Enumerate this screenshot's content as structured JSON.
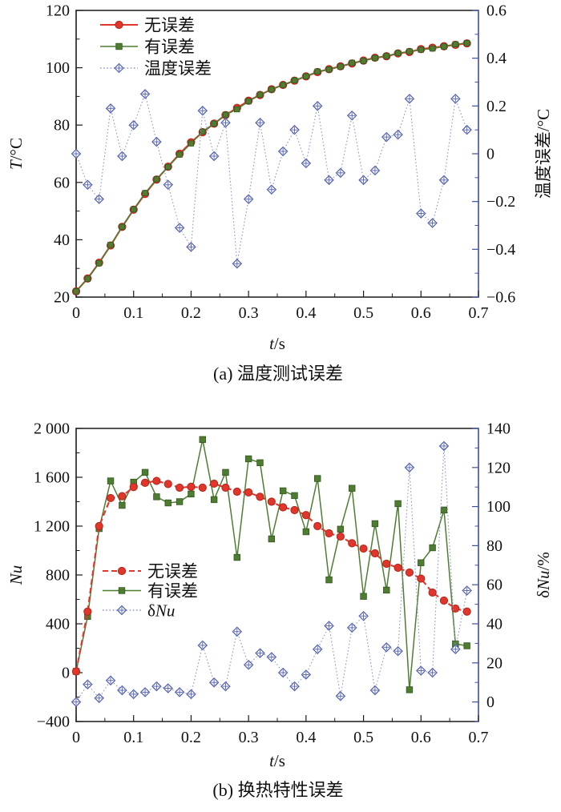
{
  "figure": {
    "background": "#ffffff",
    "caption_a": "(a) 温度测试误差",
    "caption_b": "(b) 换热特性误差"
  },
  "colors": {
    "red": "#e0362b",
    "red_edge": "#b1251a",
    "green": "#4e7d32",
    "green_edge": "#33551f",
    "blue_marker": "#4f5dab",
    "blue_line": "#8d97cb",
    "right_spine": "#3c50a2",
    "black": "#1a1a1a"
  },
  "chart_data": [
    {
      "id": "a",
      "type": "line",
      "title": "(a) 温度测试误差",
      "xlabel": [
        {
          "t": "t",
          "i": true
        },
        {
          "t": "/s",
          "i": false
        }
      ],
      "ylabel_left": [
        {
          "t": "T",
          "i": true
        },
        {
          "t": "/°C",
          "i": false
        }
      ],
      "ylabel_right": [
        {
          "t": "温度误差/°C",
          "i": false
        }
      ],
      "xlim": [
        0,
        0.7
      ],
      "xticks": [
        0,
        0.1,
        0.2,
        0.3,
        0.4,
        0.5,
        0.6,
        0.7
      ],
      "xtick_labels": [
        "0",
        "0.1",
        "0.2",
        "0.3",
        "0.4",
        "0.5",
        "0.6",
        "0.7"
      ],
      "xminor_step": 0.05,
      "ylim_left": [
        20,
        120
      ],
      "yticks_left": [
        20,
        40,
        60,
        80,
        100,
        120
      ],
      "ytick_left_labels": [
        "20",
        "40",
        "60",
        "80",
        "100",
        "120"
      ],
      "yminor_left_step": 10,
      "ylim_right": [
        -0.6,
        0.6
      ],
      "yticks_right": [
        -0.6,
        -0.4,
        -0.2,
        0,
        0.2,
        0.4,
        0.6
      ],
      "ytick_right_labels": [
        "−0.6",
        "−0.4",
        "−0.2",
        "0",
        "0.2",
        "0.4",
        "0.6"
      ],
      "yminor_right_step": 0.1,
      "x": [
        0,
        0.02,
        0.04,
        0.06,
        0.08,
        0.1,
        0.12,
        0.14,
        0.16,
        0.18,
        0.2,
        0.22,
        0.24,
        0.26,
        0.28,
        0.3,
        0.32,
        0.34,
        0.36,
        0.38,
        0.4,
        0.42,
        0.44,
        0.46,
        0.48,
        0.5,
        0.52,
        0.54,
        0.56,
        0.58,
        0.6,
        0.62,
        0.64,
        0.66,
        0.68
      ],
      "legend_pos": "top-left",
      "series": [
        {
          "key": "no-error",
          "name": [
            {
              "t": "无误差",
              "i": false
            }
          ],
          "axis": "left",
          "color": "#e0362b",
          "line": "solid",
          "marker": "circle",
          "z": 1,
          "values": [
            22.0,
            26.5,
            32.0,
            38.0,
            44.5,
            50.5,
            56.0,
            61.0,
            65.5,
            70.0,
            74.0,
            77.5,
            80.5,
            83.5,
            86.0,
            88.5,
            90.5,
            92.5,
            94.0,
            95.5,
            97.0,
            98.5,
            99.5,
            100.5,
            101.5,
            102.5,
            103.5,
            104.0,
            105.0,
            105.5,
            106.5,
            107.0,
            107.5,
            108.0,
            108.5
          ]
        },
        {
          "key": "with-error",
          "name": [
            {
              "t": "有误差",
              "i": false
            }
          ],
          "axis": "left",
          "color": "#4e7d32",
          "line": "solid",
          "marker": "square",
          "z": 2,
          "values": [
            22.0,
            26.4,
            31.8,
            38.2,
            44.5,
            50.6,
            56.3,
            61.1,
            65.4,
            69.7,
            73.6,
            77.7,
            80.5,
            83.6,
            85.5,
            88.3,
            90.6,
            92.4,
            94.0,
            95.6,
            97.0,
            98.7,
            99.4,
            100.4,
            101.7,
            102.4,
            103.4,
            104.1,
            105.1,
            105.7,
            106.3,
            106.7,
            107.4,
            108.2,
            108.6
          ]
        },
        {
          "key": "temp-error",
          "name": [
            {
              "t": "温度误差",
              "i": false
            }
          ],
          "axis": "right",
          "color": "#4f5dab",
          "line": "dotted",
          "marker": "diamond",
          "z": 3,
          "values": [
            0.0,
            -0.13,
            -0.19,
            0.19,
            -0.01,
            0.12,
            0.25,
            0.05,
            -0.13,
            -0.31,
            -0.39,
            0.18,
            -0.01,
            0.13,
            -0.46,
            -0.19,
            0.13,
            -0.15,
            0.01,
            0.1,
            -0.04,
            0.2,
            -0.11,
            -0.08,
            0.16,
            -0.11,
            -0.07,
            0.07,
            0.08,
            0.23,
            -0.25,
            -0.29,
            -0.11,
            0.23,
            0.1
          ]
        }
      ]
    },
    {
      "id": "b",
      "type": "line",
      "title": "(b) 换热特性误差",
      "xlabel": [
        {
          "t": "t",
          "i": true
        },
        {
          "t": "/s",
          "i": false
        }
      ],
      "ylabel_left": [
        {
          "t": "Nu",
          "i": true
        }
      ],
      "ylabel_right": [
        {
          "t": "δ",
          "i": false
        },
        {
          "t": "Nu",
          "i": true
        },
        {
          "t": "/%",
          "i": false
        }
      ],
      "xlim": [
        0,
        0.7
      ],
      "xticks": [
        0,
        0.1,
        0.2,
        0.3,
        0.4,
        0.5,
        0.6,
        0.7
      ],
      "xtick_labels": [
        "0",
        "0.1",
        "0.2",
        "0.3",
        "0.4",
        "0.5",
        "0.6",
        "0.7"
      ],
      "xminor_step": 0.05,
      "ylim_left": [
        -400,
        2000
      ],
      "yticks_left": [
        -400,
        0,
        400,
        800,
        1200,
        1600,
        2000
      ],
      "ytick_left_labels": [
        "−400",
        "0",
        "400",
        "800",
        "1 200",
        "1 600",
        "2 000"
      ],
      "yminor_left_step": 200,
      "ylim_right": [
        -10,
        140
      ],
      "yticks_right": [
        0,
        20,
        40,
        60,
        80,
        100,
        120,
        140
      ],
      "ytick_right_labels": [
        "0",
        "20",
        "40",
        "60",
        "80",
        "100",
        "120",
        "140"
      ],
      "yminor_right_step": 10,
      "x": [
        0,
        0.02,
        0.04,
        0.06,
        0.08,
        0.1,
        0.12,
        0.14,
        0.16,
        0.18,
        0.2,
        0.22,
        0.24,
        0.26,
        0.28,
        0.3,
        0.32,
        0.34,
        0.36,
        0.38,
        0.4,
        0.42,
        0.44,
        0.46,
        0.48,
        0.5,
        0.52,
        0.54,
        0.56,
        0.58,
        0.6,
        0.62,
        0.64,
        0.66,
        0.68
      ],
      "legend_pos": "mid-left",
      "series": [
        {
          "key": "no-error",
          "name": [
            {
              "t": "无误差",
              "i": false
            }
          ],
          "axis": "left",
          "color": "#e0362b",
          "line": "dashed",
          "marker": "circle",
          "z": 2,
          "values": [
            10,
            500,
            1200,
            1430,
            1445,
            1520,
            1555,
            1570,
            1545,
            1515,
            1522,
            1515,
            1548,
            1515,
            1482,
            1476,
            1440,
            1400,
            1354,
            1331,
            1290,
            1200,
            1141,
            1115,
            1060,
            1016,
            977,
            892,
            859,
            820,
            770,
            656,
            590,
            525,
            500
          ]
        },
        {
          "key": "with-error",
          "name": [
            {
              "t": "有误差",
              "i": false
            }
          ],
          "axis": "left",
          "color": "#4e7d32",
          "line": "solid",
          "marker": "square",
          "z": 1,
          "values": [
            10,
            460,
            1180,
            1570,
            1370,
            1560,
            1640,
            1440,
            1390,
            1400,
            1463,
            1909,
            1417,
            1640,
            944,
            1751,
            1719,
            1095,
            1489,
            1450,
            1154,
            1590,
            760,
            1175,
            1510,
            625,
            1220,
            676,
            1384,
            -140,
            900,
            1023,
            1332,
            236,
            220
          ]
        },
        {
          "key": "delta-nu",
          "name": [
            {
              "t": "δ",
              "i": false
            },
            {
              "t": "Nu",
              "i": true
            }
          ],
          "axis": "right",
          "color": "#4f5dab",
          "line": "dotted",
          "marker": "diamond",
          "z": 3,
          "values": [
            0,
            9,
            2,
            11,
            6,
            4,
            5,
            8,
            7,
            5,
            4,
            29,
            10,
            8,
            36,
            19,
            25,
            23,
            15,
            8,
            14,
            27,
            39,
            3,
            38,
            44,
            6,
            28,
            26,
            120,
            16,
            15,
            131,
            27,
            57
          ]
        }
      ]
    }
  ]
}
